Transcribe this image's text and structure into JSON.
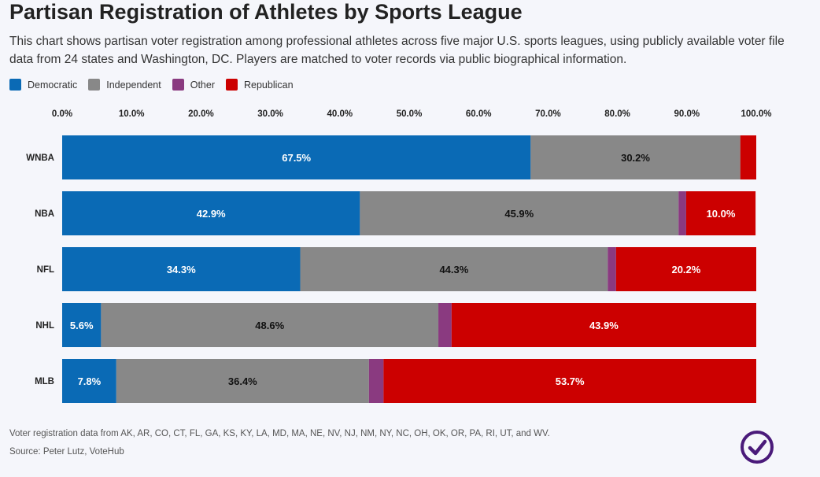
{
  "title": "Partisan Registration of Athletes by Sports League",
  "subtitle": "This chart shows partisan voter registration among professional athletes across five major U.S. sports leagues, using publicly available voter file data from 24 states and Washington, DC. Players are matched to voter records via public biographical information.",
  "legend": [
    {
      "label": "Democratic",
      "color": "#0a6ab5"
    },
    {
      "label": "Independent",
      "color": "#888888"
    },
    {
      "label": "Other",
      "color": "#8a3a80"
    },
    {
      "label": "Republican",
      "color": "#cc0000"
    }
  ],
  "footnote": "Voter registration data from AK, AR, CO, CT, FL, GA, KS, KY, LA, MD, MA, NE, NV, NJ, NM, NY, NC, OH, OK, OR, PA, RI, UT, and WV.",
  "source": "Source: Peter Lutz, VoteHub",
  "logo": {
    "icon": "checkmark-circle-icon",
    "color": "#4a1a7a"
  },
  "chart_data": {
    "type": "bar",
    "orientation": "horizontal",
    "stacked": true,
    "title": "Partisan Registration of Athletes by Sports League",
    "xlim": [
      0,
      100
    ],
    "x_ticks": [
      "0.0%",
      "10.0%",
      "20.0%",
      "30.0%",
      "40.0%",
      "50.0%",
      "60.0%",
      "70.0%",
      "80.0%",
      "90.0%",
      "100.0%"
    ],
    "categories": [
      "WNBA",
      "NBA",
      "NFL",
      "NHL",
      "MLB"
    ],
    "series": [
      {
        "name": "Democratic",
        "color": "#0a6ab5",
        "values": [
          67.5,
          42.9,
          34.3,
          5.6,
          7.8
        ],
        "labels": [
          "67.5%",
          "42.9%",
          "34.3%",
          "5.6%",
          "7.8%"
        ],
        "label_color": "#ffffff"
      },
      {
        "name": "Independent",
        "color": "#888888",
        "values": [
          30.2,
          45.9,
          44.3,
          48.6,
          36.4
        ],
        "labels": [
          "30.2%",
          "45.9%",
          "44.3%",
          "48.6%",
          "36.4%"
        ],
        "label_color": "#111111"
      },
      {
        "name": "Other",
        "color": "#8a3a80",
        "values": [
          0.0,
          1.1,
          1.2,
          1.9,
          2.1
        ],
        "labels": [
          "",
          "",
          "",
          "",
          ""
        ],
        "label_color": "#ffffff"
      },
      {
        "name": "Republican",
        "color": "#cc0000",
        "values": [
          2.3,
          10.0,
          20.2,
          43.9,
          53.7
        ],
        "labels": [
          "",
          "10.0%",
          "20.2%",
          "43.9%",
          "53.7%"
        ],
        "label_color": "#ffffff"
      }
    ]
  }
}
